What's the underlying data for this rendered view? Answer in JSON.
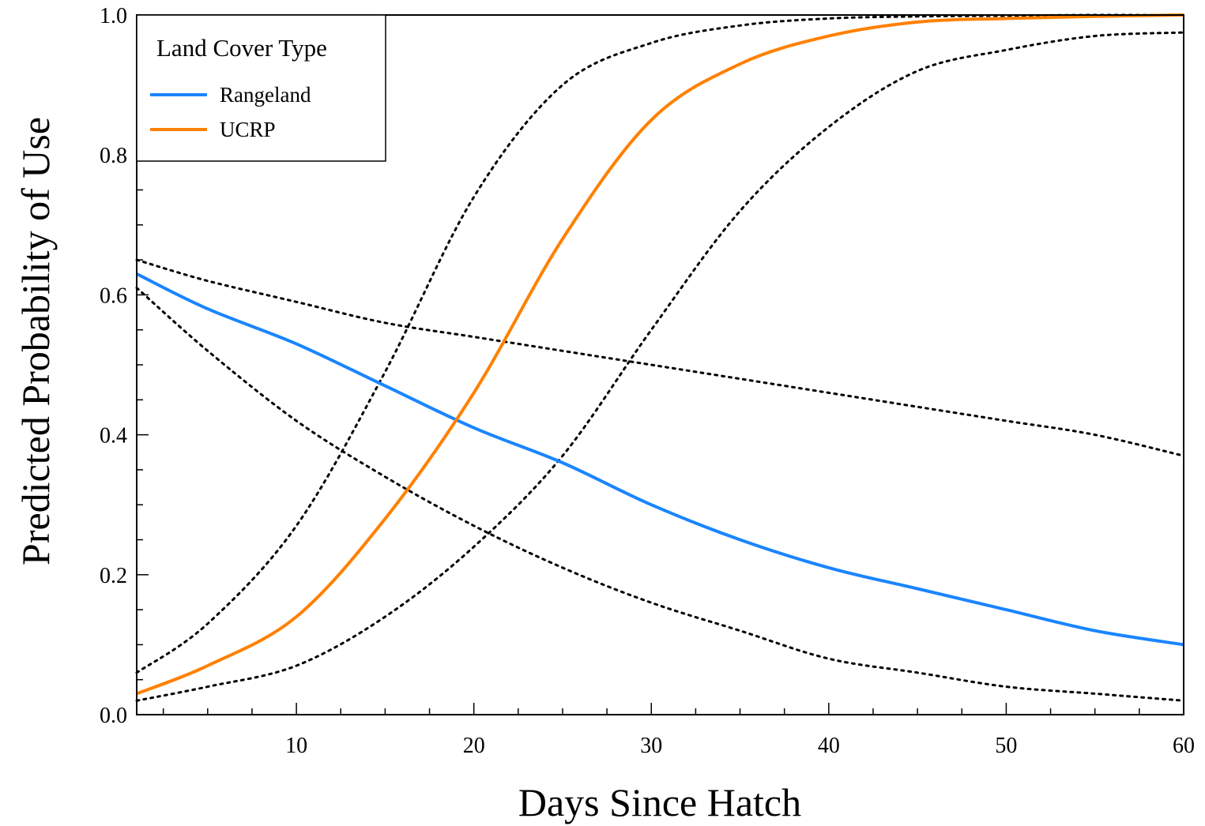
{
  "chart_data": {
    "type": "line",
    "title": "",
    "xlabel": "Days Since Hatch",
    "ylabel": "Predicted Probability of Use",
    "xlim": [
      1,
      60
    ],
    "ylim": [
      0,
      1
    ],
    "x_ticks": [
      10,
      20,
      30,
      40,
      50,
      60
    ],
    "x_tick_labels": [
      "10",
      "20",
      "30",
      "40",
      "50",
      "60"
    ],
    "y_ticks": [
      0,
      0.2,
      0.4,
      0.6,
      0.8,
      1
    ],
    "y_tick_labels": [
      "0.0",
      "0.2",
      "0.4",
      "0.6",
      "0.8",
      "1.0"
    ],
    "grid": false,
    "legend": {
      "title": "Land Cover Type",
      "position": "top-left"
    },
    "x": [
      1,
      5,
      10,
      15,
      20,
      25,
      30,
      35,
      40,
      45,
      50,
      55,
      60
    ],
    "series": [
      {
        "name": "Rangeland",
        "color": "#1a85ff",
        "style": "solid",
        "values": [
          0.63,
          0.58,
          0.53,
          0.47,
          0.41,
          0.36,
          0.3,
          0.25,
          0.21,
          0.18,
          0.15,
          0.12,
          0.1
        ]
      },
      {
        "name": "UCRP",
        "color": "#ff8000",
        "style": "solid",
        "values": [
          0.03,
          0.07,
          0.14,
          0.28,
          0.46,
          0.68,
          0.85,
          0.93,
          0.97,
          0.99,
          0.995,
          0.998,
          1.0
        ]
      }
    ],
    "confidence_bands": [
      {
        "of": "Rangeland",
        "color": "#000000",
        "style": "dotted",
        "lower": [
          0.61,
          0.52,
          0.42,
          0.34,
          0.27,
          0.21,
          0.16,
          0.12,
          0.08,
          0.06,
          0.04,
          0.03,
          0.02
        ],
        "upper": [
          0.65,
          0.62,
          0.59,
          0.56,
          0.54,
          0.52,
          0.5,
          0.48,
          0.46,
          0.44,
          0.42,
          0.4,
          0.37
        ]
      },
      {
        "of": "UCRP",
        "color": "#000000",
        "style": "dotted",
        "lower": [
          0.02,
          0.04,
          0.07,
          0.14,
          0.24,
          0.37,
          0.55,
          0.72,
          0.84,
          0.92,
          0.95,
          0.97,
          0.975
        ],
        "upper": [
          0.06,
          0.13,
          0.27,
          0.49,
          0.74,
          0.9,
          0.96,
          0.985,
          0.995,
          0.998,
          0.999,
          1.0,
          1.0
        ]
      }
    ]
  }
}
